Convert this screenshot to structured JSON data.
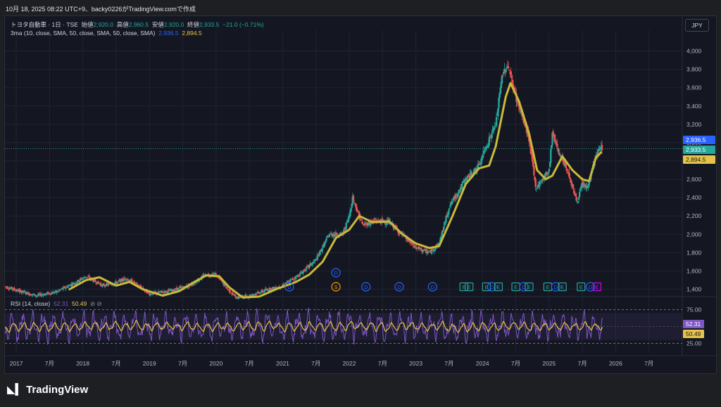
{
  "header": {
    "text": "10月 18, 2025 08:22 UTC+9、backy0226がTradingView.comで作成"
  },
  "legend": {
    "symbol": "トヨタ自動車 · 1日 · TSE",
    "open_label": "始値",
    "open": "2,920.0",
    "high_label": "高値",
    "high": "2,960.5",
    "low_label": "安値",
    "low": "2,920.0",
    "close_label": "終値",
    "close": "2,933.5",
    "change": "−21.0 (−0.71%)"
  },
  "ma_legend": {
    "label": "3ma (10, close, SMA, 50, close, SMA, 50, close, SMA)",
    "v1": "2,936.5",
    "v2": "2,894.5"
  },
  "currency": "JPY",
  "rsi_legend": {
    "label": "RSI (14, close)",
    "v1": "52.31",
    "v2": "50.49"
  },
  "footer": {
    "logo_text": "TradingView"
  },
  "colors": {
    "up": "#26a69a",
    "down": "#ef5350",
    "ma_long": "#c9b93a",
    "ma_short": "#2962ff",
    "rsi": "#7e57c2",
    "rsi_ma": "#e6c34a",
    "dividend": "#2962ff",
    "split": "#ff9800",
    "earnings": "#26a69a",
    "earnings_next": "#d500f9"
  },
  "chart_data": [
    {
      "type": "candlestick",
      "title": "トヨタ自動車 · 1日 · TSE",
      "ylim": [
        1350,
        4150
      ],
      "yticks": [
        "4,000",
        "3,800",
        "3,600",
        "3,400",
        "3,200",
        "3,000",
        "2,800",
        "2,600",
        "2,400",
        "2,200",
        "2,000",
        "1,800",
        "1,600",
        "1,400"
      ],
      "yticks_values": [
        4000,
        3800,
        3600,
        3400,
        3200,
        3000,
        2800,
        2600,
        2400,
        2200,
        2000,
        1800,
        1600,
        1400
      ],
      "xticks": [
        "2017",
        "7月",
        "2018",
        "7月",
        "2019",
        "7月",
        "2020",
        "7月",
        "2021",
        "7月",
        "2022",
        "7月",
        "2023",
        "7月",
        "2024",
        "7月",
        "2025",
        "7月",
        "2026",
        "7月"
      ],
      "xticks_values": [
        2017.0,
        2017.5,
        2018.0,
        2018.5,
        2019.0,
        2019.5,
        2020.0,
        2020.5,
        2021.0,
        2021.5,
        2022.0,
        2022.5,
        2023.0,
        2023.5,
        2024.0,
        2024.5,
        2025.0,
        2025.5,
        2026.0,
        2026.5
      ],
      "xlim": [
        2016.83,
        2027.0
      ],
      "price_path": [
        [
          2016.83,
          1430
        ],
        [
          2017.0,
          1390
        ],
        [
          2017.3,
          1330
        ],
        [
          2017.6,
          1370
        ],
        [
          2017.9,
          1480
        ],
        [
          2018.05,
          1540
        ],
        [
          2018.3,
          1440
        ],
        [
          2018.5,
          1470
        ],
        [
          2018.65,
          1520
        ],
        [
          2018.85,
          1430
        ],
        [
          2019.0,
          1350
        ],
        [
          2019.3,
          1380
        ],
        [
          2019.6,
          1440
        ],
        [
          2019.85,
          1560
        ],
        [
          2020.0,
          1560
        ],
        [
          2020.15,
          1420
        ],
        [
          2020.3,
          1310
        ],
        [
          2020.5,
          1330
        ],
        [
          2020.75,
          1390
        ],
        [
          2021.0,
          1440
        ],
        [
          2021.25,
          1560
        ],
        [
          2021.5,
          1720
        ],
        [
          2021.7,
          2000
        ],
        [
          2021.9,
          2000
        ],
        [
          2022.0,
          2200
        ],
        [
          2022.05,
          2400
        ],
        [
          2022.2,
          2100
        ],
        [
          2022.4,
          2150
        ],
        [
          2022.6,
          2130
        ],
        [
          2022.8,
          1990
        ],
        [
          2023.0,
          1850
        ],
        [
          2023.2,
          1800
        ],
        [
          2023.35,
          1900
        ],
        [
          2023.5,
          2300
        ],
        [
          2023.75,
          2600
        ],
        [
          2023.95,
          2750
        ],
        [
          2024.05,
          2950
        ],
        [
          2024.2,
          3200
        ],
        [
          2024.3,
          3750
        ],
        [
          2024.38,
          3850
        ],
        [
          2024.5,
          3500
        ],
        [
          2024.7,
          3050
        ],
        [
          2024.8,
          2500
        ],
        [
          2024.9,
          2600
        ],
        [
          2025.0,
          2700
        ],
        [
          2025.05,
          3100
        ],
        [
          2025.2,
          2800
        ],
        [
          2025.3,
          2650
        ],
        [
          2025.42,
          2350
        ],
        [
          2025.5,
          2550
        ],
        [
          2025.58,
          2500
        ],
        [
          2025.7,
          2850
        ],
        [
          2025.78,
          2960
        ],
        [
          2025.8,
          2934
        ]
      ],
      "ma_path": [
        [
          2017.8,
          1400
        ],
        [
          2018.05,
          1500
        ],
        [
          2018.25,
          1530
        ],
        [
          2018.5,
          1440
        ],
        [
          2018.7,
          1480
        ],
        [
          2018.9,
          1400
        ],
        [
          2019.2,
          1330
        ],
        [
          2019.45,
          1380
        ],
        [
          2019.65,
          1470
        ],
        [
          2019.85,
          1550
        ],
        [
          2020.05,
          1540
        ],
        [
          2020.2,
          1420
        ],
        [
          2020.4,
          1310
        ],
        [
          2020.65,
          1320
        ],
        [
          2020.9,
          1400
        ],
        [
          2021.2,
          1480
        ],
        [
          2021.4,
          1560
        ],
        [
          2021.6,
          1700
        ],
        [
          2021.8,
          1960
        ],
        [
          2022.0,
          2050
        ],
        [
          2022.15,
          2200
        ],
        [
          2022.35,
          2130
        ],
        [
          2022.6,
          2140
        ],
        [
          2022.8,
          2000
        ],
        [
          2023.0,
          1900
        ],
        [
          2023.2,
          1850
        ],
        [
          2023.35,
          1870
        ],
        [
          2023.55,
          2200
        ],
        [
          2023.75,
          2550
        ],
        [
          2023.95,
          2720
        ],
        [
          2024.1,
          2750
        ],
        [
          2024.2,
          2960
        ],
        [
          2024.35,
          3500
        ],
        [
          2024.42,
          3650
        ],
        [
          2024.55,
          3450
        ],
        [
          2024.7,
          3100
        ],
        [
          2024.82,
          2700
        ],
        [
          2024.95,
          2600
        ],
        [
          2025.05,
          2640
        ],
        [
          2025.2,
          2850
        ],
        [
          2025.35,
          2700
        ],
        [
          2025.5,
          2600
        ],
        [
          2025.6,
          2580
        ],
        [
          2025.7,
          2830
        ],
        [
          2025.78,
          2894.5
        ]
      ],
      "last_price": 2933.5,
      "price_labels": [
        {
          "value": 2936.5,
          "text": "2,936.5",
          "color": "#2962ff"
        },
        {
          "value": 2933.5,
          "text": "2,933.5",
          "color": "#26a69a"
        },
        {
          "value": 2894.5,
          "text": "2,894.5",
          "color": "#e6c34a"
        }
      ],
      "events": [
        {
          "x": 2021.1,
          "letter": "D",
          "row": 0
        },
        {
          "x": 2021.8,
          "letter": "S",
          "row": 0
        },
        {
          "x": 2021.8,
          "letter": "D",
          "row": 1
        },
        {
          "x": 2022.25,
          "letter": "D",
          "row": 0
        },
        {
          "x": 2022.75,
          "letter": "D",
          "row": 0
        },
        {
          "x": 2023.25,
          "letter": "D",
          "row": 0
        },
        {
          "x": 2023.72,
          "letter": "E",
          "row": 0
        },
        {
          "x": 2023.8,
          "letter": "E",
          "row": 0
        },
        {
          "x": 2024.06,
          "letter": "E",
          "row": 0
        },
        {
          "x": 2024.14,
          "letter": "D",
          "row": 0
        },
        {
          "x": 2024.24,
          "letter": "E",
          "row": 0
        },
        {
          "x": 2024.5,
          "letter": "E",
          "row": 0
        },
        {
          "x": 2024.62,
          "letter": "D",
          "row": 0
        },
        {
          "x": 2024.7,
          "letter": "E",
          "row": 0
        },
        {
          "x": 2024.98,
          "letter": "E",
          "row": 0
        },
        {
          "x": 2025.1,
          "letter": "D",
          "row": 0
        },
        {
          "x": 2025.2,
          "letter": "E",
          "row": 0
        },
        {
          "x": 2025.48,
          "letter": "E",
          "row": 0
        },
        {
          "x": 2025.62,
          "letter": "D",
          "row": 0
        },
        {
          "x": 2025.72,
          "letter": "E",
          "row": 0
        }
      ]
    },
    {
      "type": "line",
      "title": "RSI (14, close)",
      "ylim": [
        15,
        85
      ],
      "yticks": [
        "75.00",
        "25.00"
      ],
      "yticks_values": [
        75,
        25
      ],
      "band": [
        30,
        70
      ],
      "last_rsi": 52.31,
      "last_rsi_ma": 50.49
    }
  ]
}
